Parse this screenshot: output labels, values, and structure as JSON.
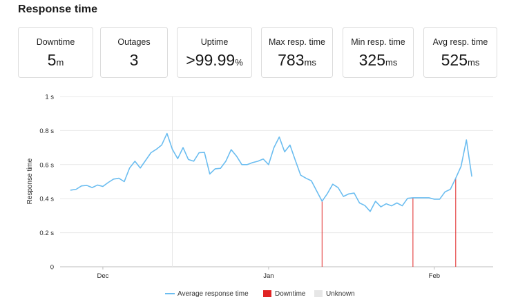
{
  "title": "Response time",
  "stats": [
    {
      "label": "Downtime",
      "value": "5",
      "unit": "m"
    },
    {
      "label": "Outages",
      "value": "3",
      "unit": ""
    },
    {
      "label": "Uptime",
      "value": ">99.99",
      "unit": "%"
    },
    {
      "label": "Max resp. time",
      "value": "783",
      "unit": "ms"
    },
    {
      "label": "Min resp. time",
      "value": "325",
      "unit": "ms"
    },
    {
      "label": "Avg resp. time",
      "value": "525",
      "unit": "ms"
    }
  ],
  "colors": {
    "line": "#6bbdf0",
    "downtime": "#e02424",
    "unknown": "#e6e6e6",
    "grid": "#e8e8e8"
  },
  "chart_data": {
    "type": "line",
    "ylabel": "Response time",
    "ylim": [
      0,
      1
    ],
    "ytick_labels": [
      "0",
      "0.2 s",
      "0.4 s",
      "0.6 s",
      "0.8 s",
      "1 s"
    ],
    "ytick_values": [
      0,
      0.2,
      0.4,
      0.6,
      0.8,
      1
    ],
    "x_tick_labels": [
      "Dec",
      "Jan",
      "Feb"
    ],
    "x_tick_dates": [
      "2023-12-01",
      "2024-01-01",
      "2024-02-01"
    ],
    "grid": true,
    "legend_position": "bottom",
    "series": [
      {
        "name": "Average response time",
        "points": [
          [
            "2023-11-25",
            0.45
          ],
          [
            "2023-11-26",
            0.455
          ],
          [
            "2023-11-27",
            0.475
          ],
          [
            "2023-11-28",
            0.478
          ],
          [
            "2023-11-29",
            0.465
          ],
          [
            "2023-11-30",
            0.48
          ],
          [
            "2023-12-01",
            0.472
          ],
          [
            "2023-12-02",
            0.495
          ],
          [
            "2023-12-03",
            0.515
          ],
          [
            "2023-12-04",
            0.52
          ],
          [
            "2023-12-05",
            0.5
          ],
          [
            "2023-12-06",
            0.58
          ],
          [
            "2023-12-07",
            0.62
          ],
          [
            "2023-12-08",
            0.58
          ],
          [
            "2023-12-09",
            0.625
          ],
          [
            "2023-12-10",
            0.67
          ],
          [
            "2023-12-11",
            0.69
          ],
          [
            "2023-12-12",
            0.715
          ],
          [
            "2023-12-13",
            0.783
          ],
          [
            "2023-12-14",
            0.69
          ],
          [
            "2023-12-15",
            0.635
          ],
          [
            "2023-12-16",
            0.7
          ],
          [
            "2023-12-17",
            0.63
          ],
          [
            "2023-12-18",
            0.62
          ],
          [
            "2023-12-19",
            0.67
          ],
          [
            "2023-12-20",
            0.672
          ],
          [
            "2023-12-21",
            0.545
          ],
          [
            "2023-12-22",
            0.575
          ],
          [
            "2023-12-23",
            0.578
          ],
          [
            "2023-12-24",
            0.62
          ],
          [
            "2023-12-25",
            0.688
          ],
          [
            "2023-12-26",
            0.65
          ],
          [
            "2023-12-27",
            0.6
          ],
          [
            "2023-12-28",
            0.6
          ],
          [
            "2023-12-29",
            0.612
          ],
          [
            "2023-12-30",
            0.62
          ],
          [
            "2023-12-31",
            0.633
          ],
          [
            "2024-01-01",
            0.6
          ],
          [
            "2024-01-02",
            0.7
          ],
          [
            "2024-01-03",
            0.762
          ],
          [
            "2024-01-04",
            0.675
          ],
          [
            "2024-01-05",
            0.715
          ],
          [
            "2024-01-06",
            0.625
          ],
          [
            "2024-01-07",
            0.538
          ],
          [
            "2024-01-08",
            0.52
          ],
          [
            "2024-01-09",
            0.505
          ],
          [
            "2024-01-10",
            0.445
          ],
          [
            "2024-01-11",
            0.385
          ],
          [
            "2024-01-12",
            0.43
          ],
          [
            "2024-01-13",
            0.485
          ],
          [
            "2024-01-14",
            0.465
          ],
          [
            "2024-01-15",
            0.413
          ],
          [
            "2024-01-16",
            0.428
          ],
          [
            "2024-01-17",
            0.433
          ],
          [
            "2024-01-18",
            0.375
          ],
          [
            "2024-01-19",
            0.36
          ],
          [
            "2024-01-20",
            0.325
          ],
          [
            "2024-01-21",
            0.385
          ],
          [
            "2024-01-22",
            0.352
          ],
          [
            "2024-01-23",
            0.37
          ],
          [
            "2024-01-24",
            0.358
          ],
          [
            "2024-01-25",
            0.375
          ],
          [
            "2024-01-26",
            0.358
          ],
          [
            "2024-01-27",
            0.402
          ],
          [
            "2024-01-28",
            0.405
          ],
          [
            "2024-01-29",
            0.405
          ],
          [
            "2024-01-30",
            0.405
          ],
          [
            "2024-01-31",
            0.405
          ],
          [
            "2024-02-01",
            0.397
          ],
          [
            "2024-02-02",
            0.397
          ],
          [
            "2024-02-03",
            0.44
          ],
          [
            "2024-02-04",
            0.455
          ],
          [
            "2024-02-05",
            0.52
          ],
          [
            "2024-02-06",
            0.59
          ],
          [
            "2024-02-07",
            0.745
          ],
          [
            "2024-02-08",
            0.532
          ]
        ]
      }
    ],
    "downtime_events": [
      "2024-01-11",
      "2024-01-28",
      "2024-02-05"
    ],
    "unknown_events": [
      "2023-12-14"
    ],
    "legend": [
      "Average response time",
      "Downtime",
      "Unknown"
    ]
  }
}
